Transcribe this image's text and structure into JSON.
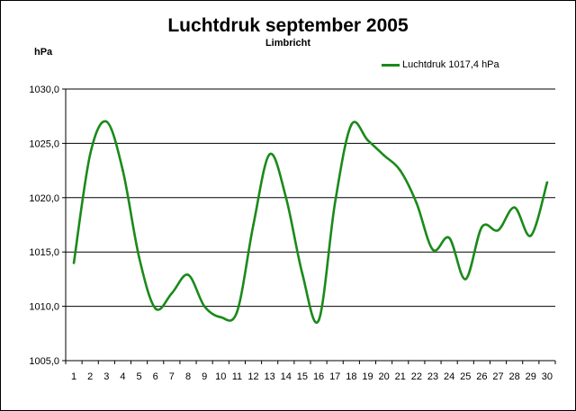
{
  "chart_data": {
    "type": "line",
    "title": "Luchtdruk september 2005",
    "subtitle": "Limbricht",
    "ylabel": "hPa",
    "xlabel": "",
    "ylim": [
      1005,
      1030
    ],
    "yticks": [
      "1005,0",
      "1010,0",
      "1015,0",
      "1020,0",
      "1025,0",
      "1030,0"
    ],
    "categories": [
      "1",
      "2",
      "3",
      "4",
      "5",
      "6",
      "7",
      "8",
      "9",
      "10",
      "11",
      "12",
      "13",
      "14",
      "15",
      "16",
      "17",
      "18",
      "19",
      "20",
      "21",
      "22",
      "23",
      "24",
      "25",
      "26",
      "27",
      "28",
      "29",
      "30"
    ],
    "grid": true,
    "legend_position": "top-right",
    "series": [
      {
        "name": "Luchtdruk 1017,4 hPa",
        "color": "#1a8a1a",
        "values": [
          1014.0,
          1024.0,
          1027.0,
          1022.5,
          1014.5,
          1009.8,
          1011.2,
          1012.9,
          1010.0,
          1009.0,
          1009.5,
          1017.5,
          1024.0,
          1020.0,
          1013.0,
          1008.7,
          1019.5,
          1026.7,
          1025.3,
          1023.9,
          1022.5,
          1019.5,
          1015.2,
          1016.3,
          1012.5,
          1017.3,
          1017.0,
          1019.1,
          1016.5,
          1021.4
        ]
      }
    ]
  }
}
